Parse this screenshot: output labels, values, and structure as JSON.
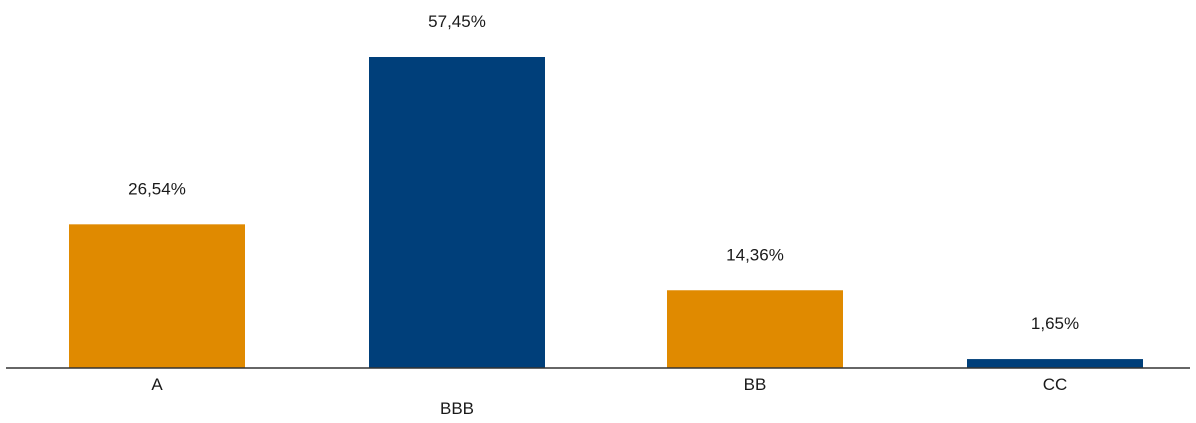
{
  "chart_data": {
    "type": "bar",
    "categories": [
      "A",
      "BBB",
      "BB",
      "CC"
    ],
    "values": [
      26.54,
      57.45,
      14.36,
      1.65
    ],
    "data_labels": [
      "26,54%",
      "57,45%",
      "14,36%",
      "1,65%"
    ],
    "title": "",
    "xlabel": "",
    "ylabel": "",
    "ylim": [
      0,
      57.45
    ],
    "grid": false,
    "legend": "none",
    "bar_colors": [
      "#E08A00",
      "#003F7A",
      "#E08A00",
      "#003F7A"
    ],
    "axis_color": "#333333"
  }
}
